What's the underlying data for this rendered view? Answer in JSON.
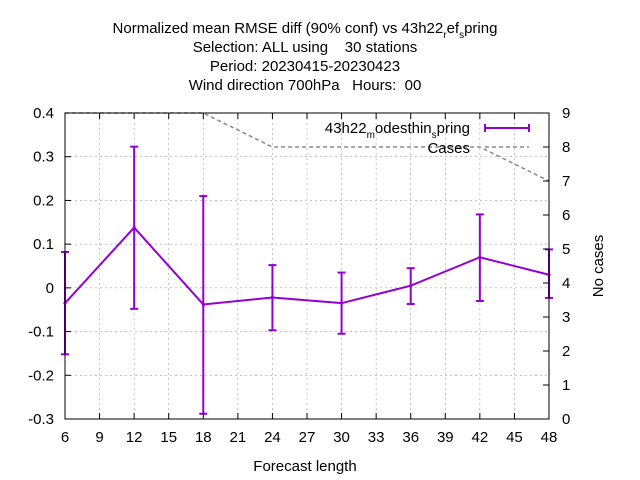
{
  "chart_data": {
    "type": "line",
    "title_lines": [
      "Normalized mean RMSE diff (90% conf) vs 43h22",
      "Selection: ALL using    30 stations",
      "Period: 20230415-20230423",
      "Wind direction 700hPa   Hours:  00"
    ],
    "title_subscript": {
      "part1": "r",
      "mid": "ef",
      "part2": "s",
      "tail": "pring"
    },
    "xlabel": "Forecast length",
    "ylabel": "",
    "y2label": "No cases",
    "xlim": [
      6,
      48
    ],
    "ylim": [
      -0.3,
      0.4
    ],
    "y2lim": [
      0,
      9
    ],
    "xticks": [
      "6",
      "9",
      "12",
      "15",
      "18",
      "21",
      "24",
      "27",
      "30",
      "33",
      "36",
      "39",
      "42",
      "45",
      "48"
    ],
    "yticks": [
      "0.4",
      "0.3",
      "0.2",
      "0.1",
      "0",
      "-0.1",
      "-0.2",
      "-0.3"
    ],
    "y2ticks": [
      "9",
      "8",
      "7",
      "6",
      "5",
      "4",
      "3",
      "2",
      "1",
      "0"
    ],
    "grid": true,
    "legend_position": "top-right",
    "series": [
      {
        "name_main": "43h22",
        "name_sub1": "m",
        "name_mid": "odesthin",
        "name_sub2": "s",
        "name_tail": "pring",
        "color": "#9400d3",
        "x": [
          6,
          12,
          18,
          24,
          30,
          36,
          42,
          48
        ],
        "y": [
          -0.035,
          0.138,
          -0.038,
          -0.022,
          -0.035,
          0.005,
          0.07,
          0.03
        ],
        "err_low": [
          -0.152,
          -0.048,
          -0.288,
          -0.097,
          -0.105,
          -0.037,
          -0.03,
          -0.023
        ],
        "err_high": [
          0.082,
          0.323,
          0.21,
          0.052,
          0.035,
          0.045,
          0.168,
          0.088
        ]
      },
      {
        "name": "Cases",
        "axis": "y2",
        "color": "#888888",
        "x": [
          6,
          18,
          24,
          42,
          48
        ],
        "y": [
          9,
          9,
          8,
          8,
          7
        ]
      }
    ]
  }
}
